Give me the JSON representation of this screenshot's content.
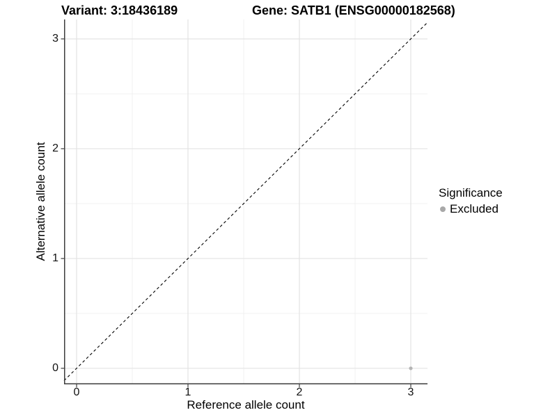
{
  "chart_data": {
    "type": "scatter",
    "titles": [
      "Variant: 3:18436189",
      "Gene: SATB1 (ENSG00000182568)"
    ],
    "xlabel": "Reference allele count",
    "ylabel": "Alternative allele count",
    "x_ticks": [
      0,
      1,
      2,
      3
    ],
    "y_ticks": [
      0,
      1,
      2,
      3
    ],
    "xlim": [
      -0.1125,
      3.15
    ],
    "ylim": [
      -0.146,
      3.177
    ],
    "grid": {
      "major": true,
      "minor": true,
      "background": "#ffffff"
    },
    "identity_line": {
      "style": "dashed",
      "color": "#000000",
      "slope": 1,
      "intercept": 0
    },
    "series": [
      {
        "name": "Excluded",
        "color": "#b4b4b4",
        "points": [
          {
            "x": 3,
            "y": 0
          }
        ]
      }
    ],
    "legend": {
      "title": "Significance",
      "position": "right",
      "entries": [
        {
          "label": "Excluded",
          "color": "#a8a8a8",
          "marker": "circle"
        }
      ]
    },
    "style": {
      "grid_major_color": "#e3e3e3",
      "grid_minor_color": "#f1f1f1",
      "axis_line_color": "#3c3c3c",
      "text_color": "#000000",
      "point_radius": 2.6
    }
  }
}
